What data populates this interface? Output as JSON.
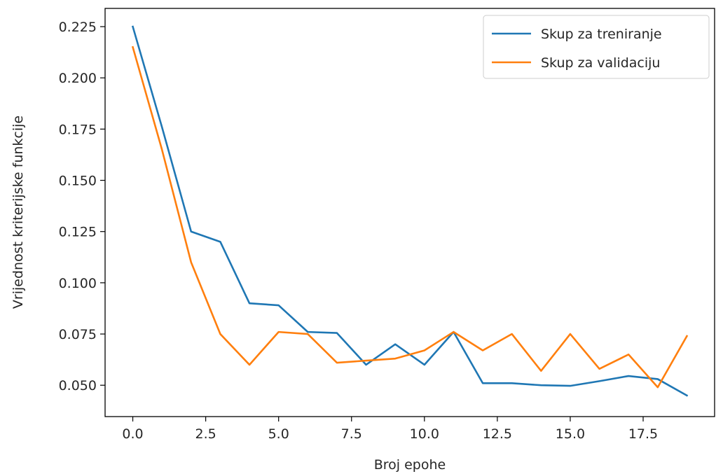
{
  "chart_data": {
    "type": "line",
    "title": "",
    "xlabel": "Broj epohe",
    "ylabel": "Vrijednost kriterijske funkcije",
    "xlim": [
      -0.95,
      19.95
    ],
    "ylim": [
      0.0347,
      0.2339
    ],
    "xticks": [
      0,
      2.5,
      5,
      7.5,
      10,
      12.5,
      15,
      17.5
    ],
    "xtick_labels": [
      "0.0",
      "2.5",
      "5.0",
      "7.5",
      "10.0",
      "12.5",
      "15.0",
      "17.5"
    ],
    "yticks": [
      0.05,
      0.075,
      0.1,
      0.125,
      0.15,
      0.175,
      0.2,
      0.225
    ],
    "ytick_labels": [
      "0.050",
      "0.075",
      "0.100",
      "0.125",
      "0.150",
      "0.175",
      "0.200",
      "0.225"
    ],
    "grid": false,
    "legend_position": "top-right",
    "x": [
      0,
      1,
      2,
      3,
      4,
      5,
      6,
      7,
      8,
      9,
      10,
      11,
      12,
      13,
      14,
      15,
      16,
      17,
      18,
      19
    ],
    "series": [
      {
        "name": "Skup za treniranje",
        "color": "#1f77b4",
        "values": [
          0.225,
          0.176,
          0.125,
          0.12,
          0.09,
          0.089,
          0.076,
          0.0755,
          0.06,
          0.07,
          0.06,
          0.076,
          0.051,
          0.051,
          0.05,
          0.0497,
          0.052,
          0.0545,
          0.053,
          0.045
        ]
      },
      {
        "name": "Skup za validaciju",
        "color": "#ff7f0e",
        "values": [
          0.215,
          0.165,
          0.11,
          0.075,
          0.06,
          0.076,
          0.075,
          0.061,
          0.062,
          0.063,
          0.067,
          0.076,
          0.067,
          0.075,
          0.057,
          0.075,
          0.058,
          0.065,
          0.049,
          0.074
        ]
      }
    ]
  }
}
